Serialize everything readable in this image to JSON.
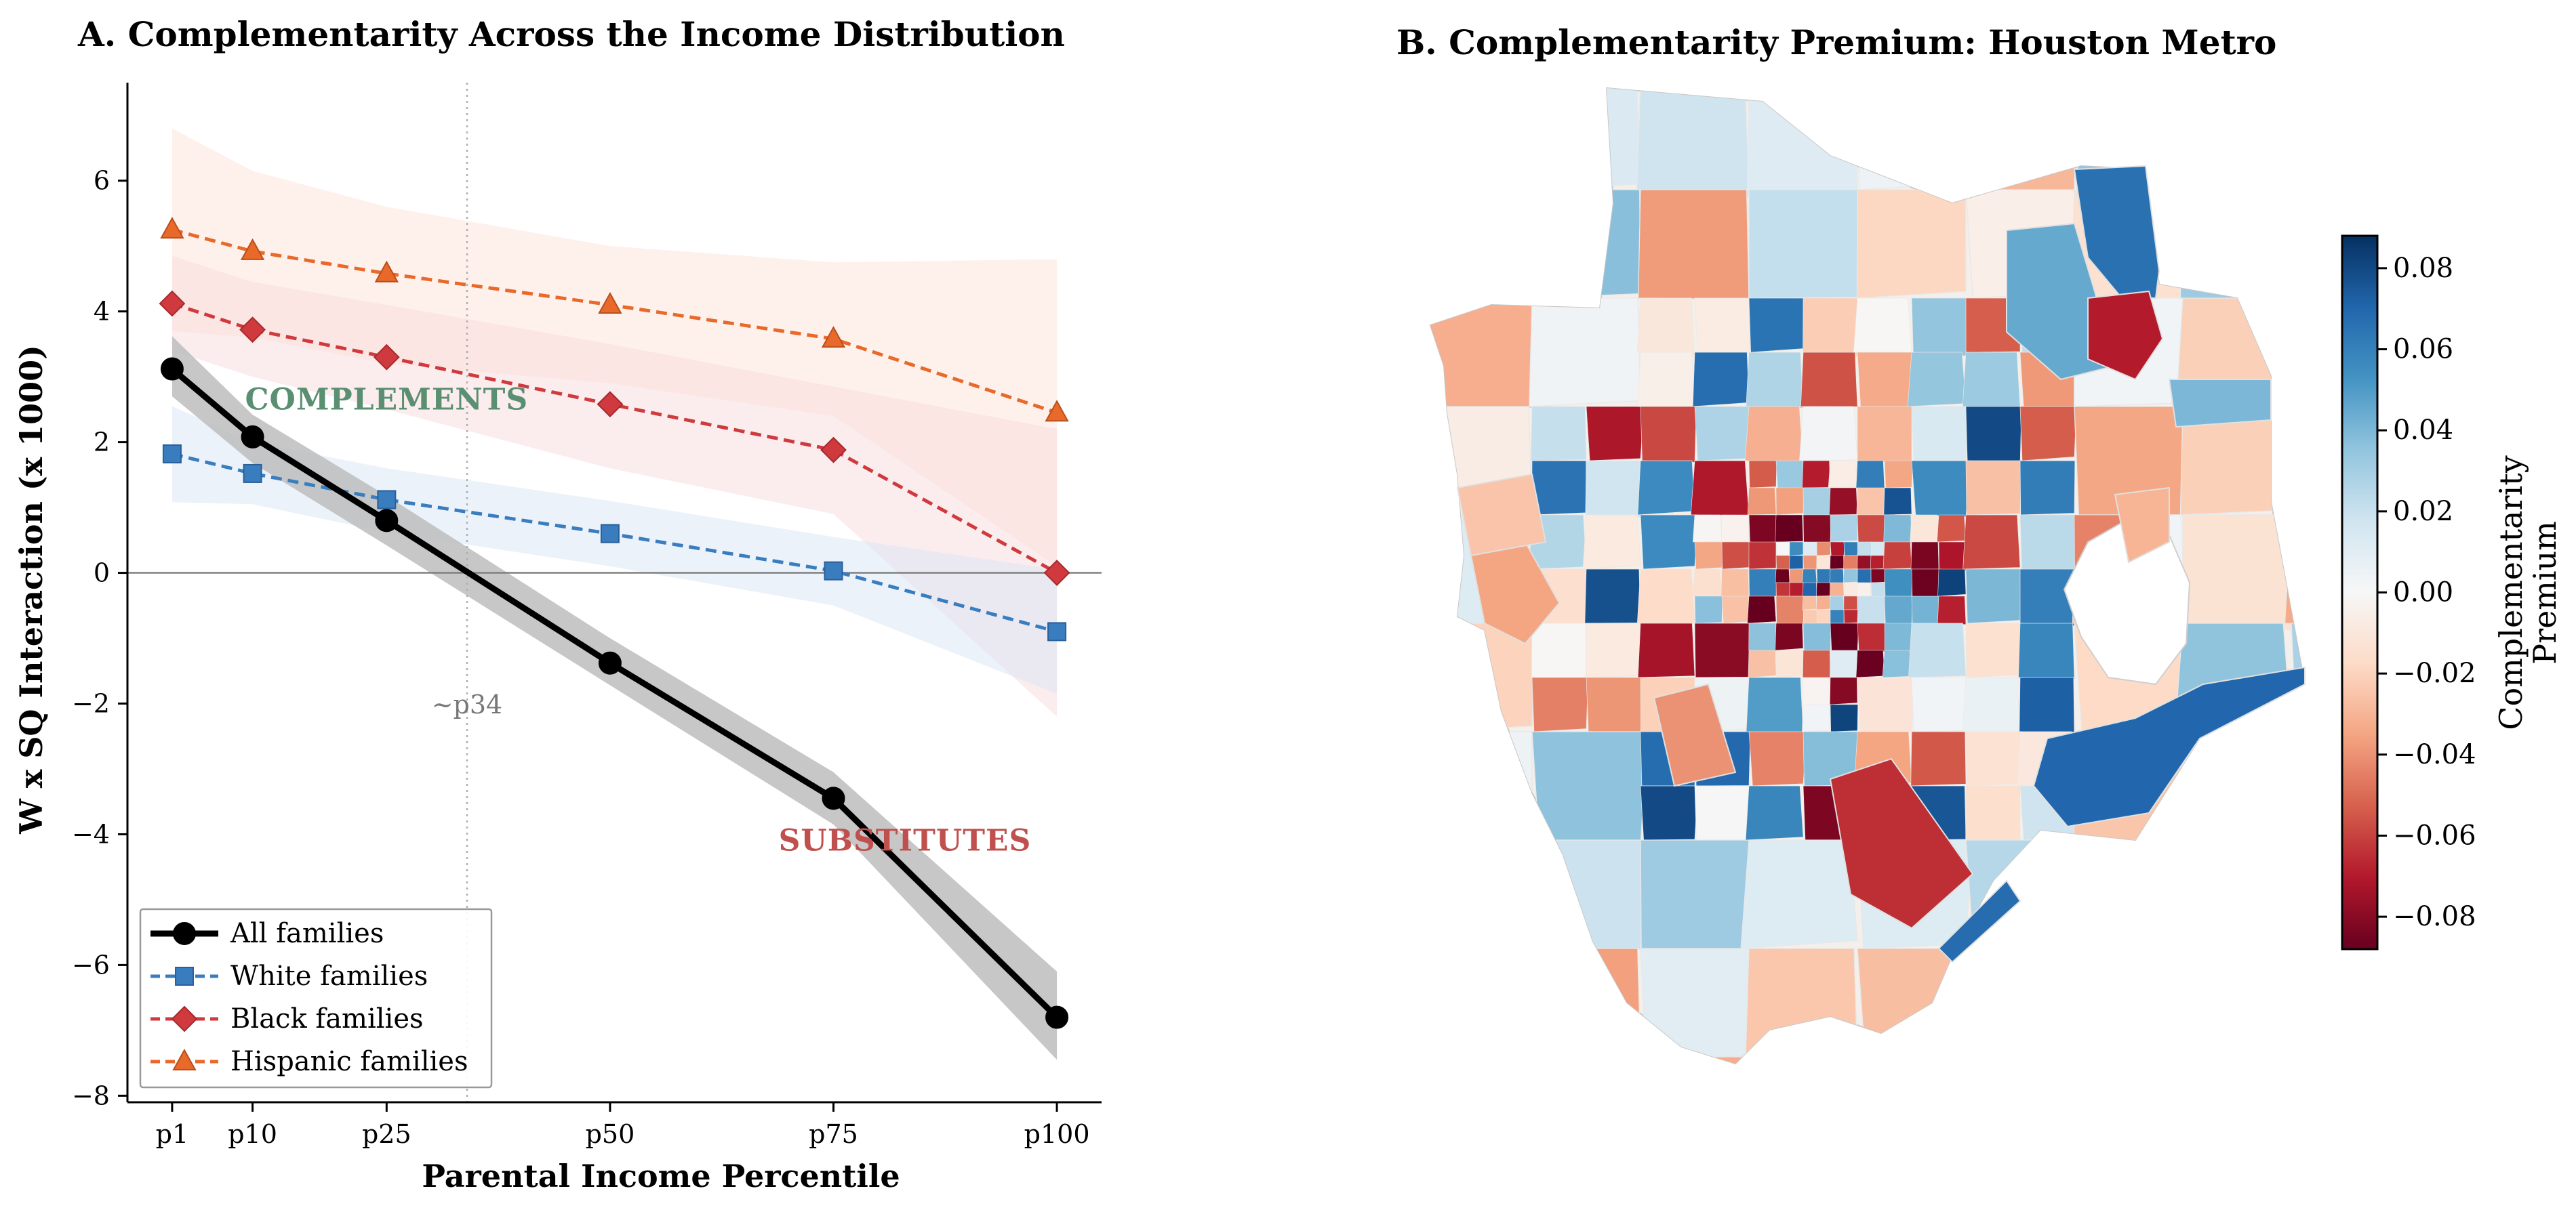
{
  "panel_a": {
    "title": "A. Complementarity Across the Income Distribution"
  },
  "panel_b": {
    "title": "B. Complementarity Premium: Houston Metro",
    "colorbar_label_line1": "Complementarity",
    "colorbar_label_line2": "Premium",
    "colorbar_ticks": [
      "0.08",
      "0.06",
      "0.04",
      "0.02",
      "0.00",
      "−0.02",
      "−0.04",
      "−0.06",
      "−0.08"
    ],
    "colormap": "RdBu",
    "colormap_stops": [
      "#67001f",
      "#b2182b",
      "#d6604d",
      "#f4a582",
      "#fddbc7",
      "#f7f7f7",
      "#d1e5f0",
      "#92c5de",
      "#4393c3",
      "#2166ac",
      "#053061"
    ]
  },
  "chart_data": [
    {
      "type": "line",
      "title": "A. Complementarity Across the Income Distribution",
      "xlabel": "Parental Income Percentile",
      "ylabel": "W x SQ Interaction (x 1000)",
      "x": [
        1,
        10,
        25,
        50,
        75,
        100
      ],
      "x_tick_labels": [
        "p1",
        "p10",
        "p25",
        "p50",
        "p75",
        "p100"
      ],
      "xlim": [
        -4,
        105
      ],
      "ylim": [
        -8.1,
        7.5
      ],
      "y_ticks": [
        -8,
        -6,
        -4,
        -2,
        0,
        2,
        4,
        6
      ],
      "y_tick_labels": [
        "−8",
        "−6",
        "−4",
        "−2",
        "0",
        "2",
        "4",
        "6"
      ],
      "grid": false,
      "legend_position": "lower-left",
      "series": [
        {
          "name": "All families",
          "color": "#000000",
          "marker": "circle",
          "linestyle": "solid",
          "values": [
            3.12,
            2.08,
            0.8,
            -1.38,
            -3.45,
            -6.8
          ],
          "ci_lower": [
            2.7,
            1.68,
            0.42,
            -1.72,
            -3.85,
            -7.45
          ],
          "ci_upper": [
            3.62,
            2.42,
            1.18,
            -1.0,
            -3.05,
            -6.1
          ],
          "ci_color": "#bdbdbd"
        },
        {
          "name": "White families",
          "color": "#3a7dbf",
          "marker": "square",
          "linestyle": "dashed",
          "values": [
            1.82,
            1.52,
            1.12,
            0.6,
            0.03,
            -0.9
          ],
          "ci_lower": [
            1.08,
            1.05,
            0.62,
            0.1,
            -0.5,
            -1.85
          ],
          "ci_upper": [
            2.55,
            2.0,
            1.6,
            1.1,
            0.55,
            0.05
          ],
          "ci_color": "#dce8f6"
        },
        {
          "name": "Black families",
          "color": "#d03a3e",
          "marker": "diamond",
          "linestyle": "dashed",
          "values": [
            4.12,
            3.72,
            3.3,
            2.58,
            1.88,
            0.0
          ],
          "ci_lower": [
            3.4,
            3.0,
            2.5,
            1.6,
            0.9,
            -2.2
          ],
          "ci_upper": [
            4.85,
            4.45,
            4.1,
            3.5,
            2.85,
            2.2
          ],
          "ci_color": "#f8dcde"
        },
        {
          "name": "Hispanic families",
          "color": "#e8692a",
          "marker": "triangle",
          "linestyle": "dashed",
          "values": [
            5.25,
            4.92,
            4.58,
            4.1,
            3.58,
            2.45
          ],
          "ci_lower": [
            3.7,
            3.6,
            3.2,
            2.9,
            2.4,
            0.1
          ],
          "ci_upper": [
            6.8,
            6.15,
            5.6,
            5.0,
            4.75,
            4.8
          ],
          "ci_color": "#fde6dc"
        }
      ],
      "reference_lines": {
        "horizontal_y": 0,
        "vertical_x": 34,
        "vertical_label": "~p34"
      },
      "annotations": [
        {
          "text": "COMPLEMENTS",
          "x": 25,
          "y": 2.5,
          "color": "#5a8f72"
        },
        {
          "text": "SUBSTITUTES",
          "x": 83,
          "y": -4.25,
          "color": "#c0504d"
        }
      ]
    },
    {
      "type": "heatmap",
      "title": "B. Complementarity Premium: Houston Metro",
      "colorbar_label": "Complementarity Premium",
      "colorbar_range": [
        -0.088,
        0.088
      ],
      "colorbar_ticks": [
        -0.08,
        -0.06,
        -0.04,
        -0.02,
        0.0,
        0.02,
        0.04,
        0.06,
        0.08
      ]
    }
  ]
}
